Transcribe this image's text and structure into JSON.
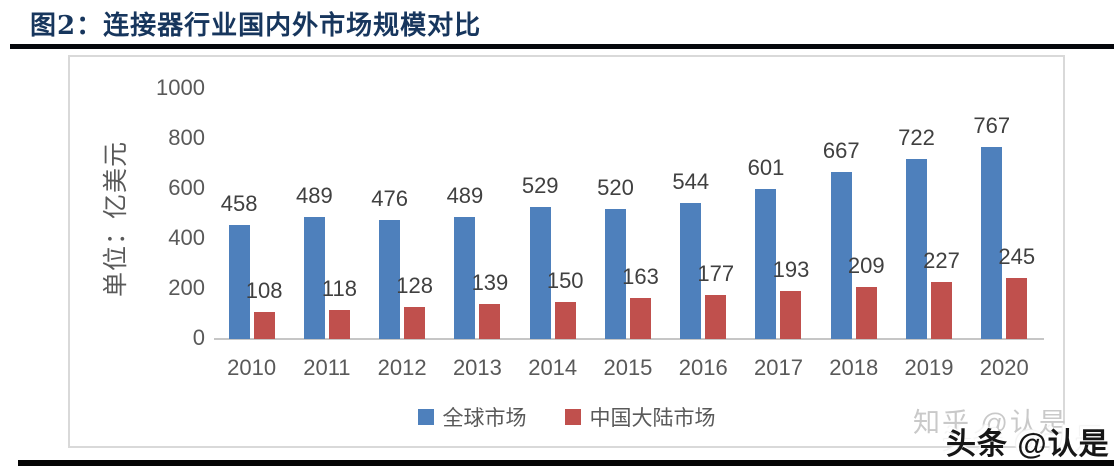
{
  "header": {
    "title": "图2：连接器行业国内外市场规模对比"
  },
  "chart_data": {
    "type": "bar",
    "title": "图2：连接器行业国内外市场规模对比",
    "ylabel": "单位：亿美元",
    "xlabel": "",
    "categories": [
      "2010",
      "2011",
      "2012",
      "2013",
      "2014",
      "2015",
      "2016",
      "2017",
      "2018",
      "2019",
      "2020"
    ],
    "series": [
      {
        "name": "全球市场",
        "color": "#4E80BC",
        "values": [
          458,
          489,
          476,
          489,
          529,
          520,
          544,
          601,
          667,
          722,
          767
        ]
      },
      {
        "name": "中国大陆市场",
        "color": "#C0504D",
        "values": [
          108,
          118,
          128,
          139,
          150,
          163,
          177,
          193,
          209,
          227,
          245
        ]
      }
    ],
    "ylim": [
      0,
      1000
    ],
    "yticks": [
      0,
      200,
      400,
      600,
      800,
      1000
    ],
    "grid": false,
    "legend_position": "bottom",
    "data_labels": true
  },
  "watermarks": {
    "zhihu": "知乎 @认是",
    "toutiao": "头条 @认是"
  },
  "colors": {
    "title": "#17365D",
    "bar_blue": "#4E80BC",
    "bar_red": "#C0504D",
    "axis_text": "#595959",
    "data_label": "#404040",
    "chart_border": "#D9D9D9",
    "rule": "#050505"
  }
}
